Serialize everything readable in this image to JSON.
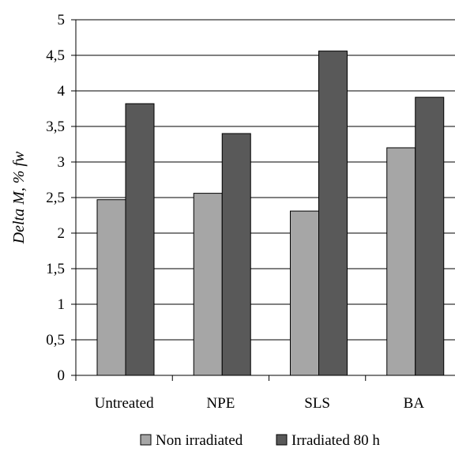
{
  "chart_data": {
    "type": "bar",
    "title": "",
    "xlabel": "",
    "ylabel": "Delta M, % fw",
    "ylim": [
      0,
      5
    ],
    "yticks": [
      "0",
      "0,5",
      "1",
      "1,5",
      "2",
      "2,5",
      "3",
      "3,5",
      "4",
      "4,5",
      "5"
    ],
    "grid": true,
    "legend_position": "bottom",
    "categories": [
      "Untreated",
      "NPE",
      "SLS",
      "BA"
    ],
    "series": [
      {
        "name": "Non irradiated",
        "color": "#a6a6a6",
        "values": [
          2.47,
          2.56,
          2.31,
          3.2
        ]
      },
      {
        "name": "Irradiated 80 h",
        "color": "#595959",
        "values": [
          3.82,
          3.4,
          4.56,
          3.91
        ]
      }
    ]
  }
}
